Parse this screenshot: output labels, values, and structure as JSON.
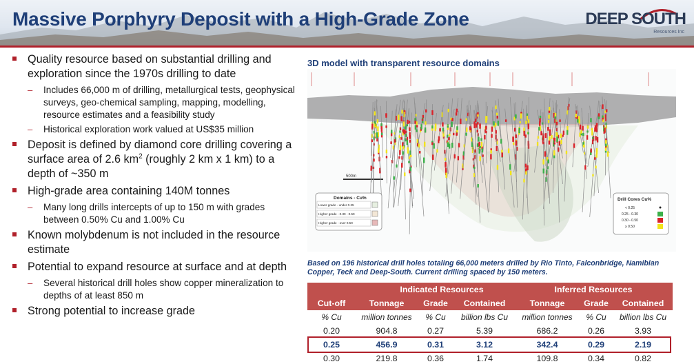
{
  "title": "Massive Porphyry Deposit with a High-Grade Zone",
  "logo": {
    "name": "DEEP SOUTH",
    "subtitle": "Resources Inc"
  },
  "bullets": [
    {
      "text": "Quality resource based on substantial drilling and exploration since the 1970s drilling to date",
      "subs": [
        "Includes 66,000 m of drilling, metallurgical tests, geophysical surveys, geo-chemical sampling, mapping, modelling, resource estimates and a feasibility study",
        "Historical exploration work valued at US$35 million"
      ]
    },
    {
      "text_pre": "Deposit is defined by diamond core drilling covering a surface area of 2.6 km",
      "sup": "2",
      "text_post": " (roughly 2 km x 1 km) to a depth of ~350 m",
      "subs": []
    },
    {
      "text": "High-grade area containing 140M tonnes",
      "subs": [
        "Many long drills intercepts of up to 150 m with grades between 0.50% Cu and 1.00% Cu"
      ]
    },
    {
      "text": "Known molybdenum is not included in the resource estimate",
      "subs": []
    },
    {
      "text": "Potential to expand resource at surface and at depth",
      "subs": [
        "Several historical drill holes show copper mineralization to depths of at least 850 m"
      ]
    },
    {
      "text": "Strong potential to increase grade",
      "subs": []
    }
  ],
  "model": {
    "title": "3D model with transparent resource domains",
    "scale_label": "500m",
    "domains_legend": {
      "title": "Domains - Cu%",
      "items": [
        {
          "label": "Lower grade - under 0.25",
          "color": "#e6efe0"
        },
        {
          "label": "Higher grade - 0.30 - 0.50",
          "color": "#f3e7d6"
        },
        {
          "label": "Higher grade - over 0.50",
          "color": "#e7b9b9"
        }
      ]
    },
    "drill_legend": {
      "title": "Drill Cores Cu%",
      "items": [
        {
          "label": "< 0.25",
          "color": "#222222"
        },
        {
          "label": "0.25 - 0.30",
          "color": "#3cb04a"
        },
        {
          "label": "0.30 - 0.50",
          "color": "#d9232a"
        },
        {
          "label": "≥ 0.50",
          "color": "#f2e41b"
        }
      ]
    }
  },
  "caption": "Based on 196 historical drill holes totaling 66,000 meters drilled by Rio Tinto, Falconbridge, Namibian Copper, Teck and Deep-South. Current drilling spaced by 150 meters.",
  "table": {
    "groups": {
      "indicated": "Indicated Resources",
      "inferred": "Inferred Resources"
    },
    "headers": [
      "Cut-off",
      "Tonnage",
      "Grade",
      "Contained",
      "Tonnage",
      "Grade",
      "Contained"
    ],
    "units": [
      "% Cu",
      "million tonnes",
      "% Cu",
      "billion lbs Cu",
      "million tonnes",
      "% Cu",
      "billion lbs Cu"
    ],
    "rows": [
      [
        "0.20",
        "904.8",
        "0.27",
        "5.39",
        "686.2",
        "0.26",
        "3.93"
      ],
      [
        "0.25",
        "456.9",
        "0.31",
        "3.12",
        "342.4",
        "0.29",
        "2.19"
      ],
      [
        "0.30",
        "219.8",
        "0.36",
        "1.74",
        "109.8",
        "0.34",
        "0.82"
      ]
    ],
    "highlight_row": 1,
    "colors": {
      "header": "#c0504d",
      "highlight_border": "#b0202a",
      "highlight_text": "#1f3f78"
    }
  },
  "colors": {
    "title": "#1f3f78",
    "accent": "#b0202a"
  }
}
